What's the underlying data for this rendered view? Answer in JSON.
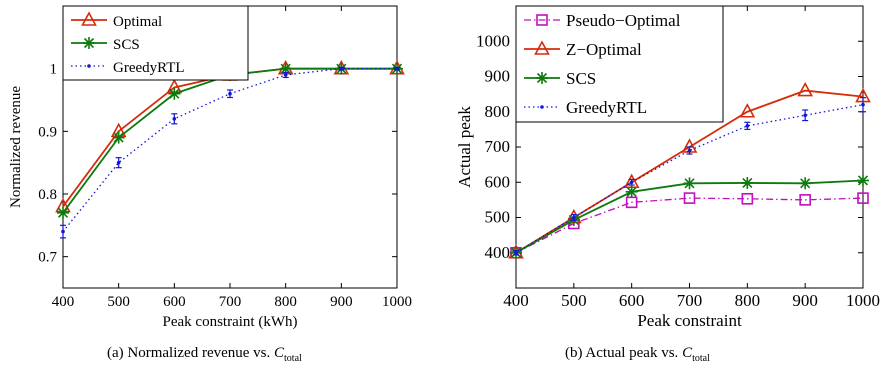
{
  "colors": {
    "optimal": "#d62c0b",
    "scs": "#0c7a0c",
    "greedy": "#1515d6",
    "pseudo": "#c010c0"
  },
  "chart_data": [
    {
      "type": "line",
      "xlabel": "Peak constraint (kWh)",
      "ylabel": "Normalized revenue",
      "x": [
        400,
        500,
        600,
        700,
        800,
        900,
        1000
      ],
      "xlim": [
        400,
        1000
      ],
      "ylim": [
        0.65,
        1.1
      ],
      "xticks": [
        "400",
        "500",
        "600",
        "700",
        "800",
        "900",
        "1000"
      ],
      "yticks": [
        {
          "value": 0.7,
          "label": "0.7"
        },
        {
          "value": 0.8,
          "label": "0.8"
        },
        {
          "value": 0.9,
          "label": "0.9"
        },
        {
          "value": 1.0,
          "label": "1"
        }
      ],
      "grid": false,
      "legend_position": "top-left",
      "series": [
        {
          "name": "Optimal",
          "values": [
            0.78,
            0.9,
            0.97,
            0.99,
            1.0,
            1.0,
            1.0
          ],
          "marker": "triangle",
          "dash": "solid",
          "color_key": "optimal"
        },
        {
          "name": "SCS",
          "values": [
            0.77,
            0.89,
            0.96,
            0.99,
            1.0,
            1.0,
            1.0
          ],
          "marker": "star",
          "dash": "solid",
          "color_key": "scs"
        },
        {
          "name": "GreedyRTL",
          "values": [
            0.74,
            0.85,
            0.92,
            0.96,
            0.99,
            1.0,
            1.0
          ],
          "errors": [
            0.01,
            0.008,
            0.008,
            0.006,
            0.004,
            0.002,
            0.002
          ],
          "marker": "dot",
          "dash": "dotted",
          "color_key": "greedy"
        }
      ],
      "caption": {
        "prefix": "(a) Normalized revenue vs. ",
        "var": "C",
        "sub": "total"
      }
    },
    {
      "type": "line",
      "xlabel": "Peak constraint",
      "ylabel": "Actual peak",
      "x": [
        400,
        500,
        600,
        700,
        800,
        900,
        1000
      ],
      "xlim": [
        400,
        1000
      ],
      "ylim": [
        300,
        1100
      ],
      "xticks": [
        "400",
        "500",
        "600",
        "700",
        "800",
        "900",
        "1000"
      ],
      "yticks": [
        {
          "value": 400,
          "label": "400"
        },
        {
          "value": 500,
          "label": "500"
        },
        {
          "value": 600,
          "label": "600"
        },
        {
          "value": 700,
          "label": "700"
        },
        {
          "value": 800,
          "label": "800"
        },
        {
          "value": 900,
          "label": "900"
        },
        {
          "value": 1000,
          "label": "1000"
        }
      ],
      "grid": false,
      "legend_position": "top-left",
      "series": [
        {
          "name": "Pseudo−Optimal",
          "values": [
            400,
            483,
            543,
            555,
            553,
            550,
            555
          ],
          "marker": "square",
          "dash": "dashdot",
          "color_key": "pseudo"
        },
        {
          "name": "Z−Optimal",
          "values": [
            400,
            500,
            600,
            700,
            800,
            860,
            843
          ],
          "marker": "triangle",
          "dash": "solid",
          "color_key": "optimal"
        },
        {
          "name": "SCS",
          "values": [
            400,
            493,
            573,
            597,
            598,
            597,
            605
          ],
          "marker": "star",
          "dash": "solid",
          "color_key": "scs"
        },
        {
          "name": "GreedyRTL",
          "values": [
            400,
            500,
            600,
            690,
            760,
            790,
            820
          ],
          "errors": [
            6,
            8,
            8,
            10,
            10,
            15,
            20
          ],
          "marker": "dot",
          "dash": "dotted",
          "color_key": "greedy"
        }
      ],
      "caption": {
        "prefix": "(b) Actual peak vs. ",
        "var": "C",
        "sub": "total"
      }
    }
  ]
}
